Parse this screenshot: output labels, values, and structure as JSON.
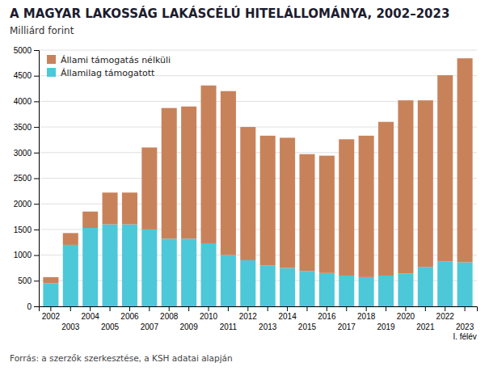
{
  "chart_data": {
    "type": "bar",
    "stacked": true,
    "title": "A MAGYAR LAKOSSÁG LAKÁSCÉLÚ HITELÁLLOMÁNYA, 2002–2023",
    "subtitle": "Milliárd forint",
    "annotations": [
      "Forrás: a szerzők szerkesztése, a KSH adatai alapján"
    ],
    "categories": [
      "2002",
      "2003",
      "2004",
      "2005",
      "2006",
      "2007",
      "2008",
      "2009",
      "2010",
      "2011",
      "2012",
      "2013",
      "2014",
      "2015",
      "2016",
      "2017",
      "2018",
      "2019",
      "2020",
      "2021",
      "2022",
      "2023\nI. félév"
    ],
    "series": [
      {
        "name": "Államilag támogatott",
        "color": "#4dc8d8",
        "values": [
          450,
          1200,
          1530,
          1600,
          1600,
          1500,
          1320,
          1320,
          1230,
          1000,
          900,
          800,
          750,
          690,
          650,
          600,
          570,
          600,
          640,
          770,
          880,
          860
        ]
      },
      {
        "name": "Állami támogatás nélküli",
        "color": "#c8825a",
        "values": [
          120,
          230,
          320,
          620,
          620,
          1600,
          2550,
          2580,
          3080,
          3200,
          2600,
          2530,
          2540,
          2280,
          2290,
          2660,
          2760,
          3000,
          3380,
          3250,
          3630,
          3980
        ]
      }
    ],
    "ylim": [
      0,
      5000
    ],
    "yticks": [
      0,
      500,
      1000,
      1500,
      2000,
      2500,
      3000,
      3500,
      4000,
      4500,
      5000
    ],
    "grid": true,
    "legend": "upper left"
  }
}
